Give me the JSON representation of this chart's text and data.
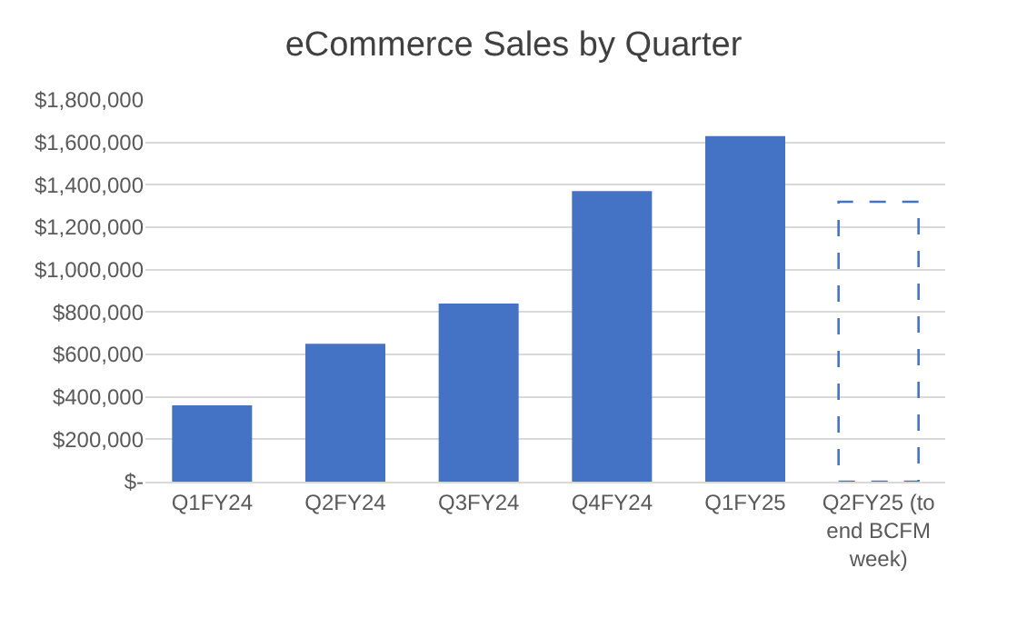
{
  "chart_data": {
    "type": "bar",
    "title": "eCommerce Sales by Quarter",
    "categories": [
      "Q1FY24",
      "Q2FY24",
      "Q3FY24",
      "Q4FY24",
      "Q1FY25",
      "Q2FY25 (to end BCFM week)"
    ],
    "series": [
      {
        "color": "#4472c4",
        "values": [
          360000,
          650000,
          840000,
          1370000,
          1630000,
          null
        ]
      },
      {
        "color": "#4472c4",
        "line_style": "dashed",
        "values": [
          null,
          null,
          null,
          null,
          null,
          1320000
        ]
      }
    ],
    "ylim": [
      0,
      1800000
    ],
    "yticks": [
      {
        "value": 0,
        "label": "$-"
      },
      {
        "value": 200000,
        "label": "$200,000"
      },
      {
        "value": 400000,
        "label": "$400,000"
      },
      {
        "value": 600000,
        "label": "$600,000"
      },
      {
        "value": 800000,
        "label": "$800,000"
      },
      {
        "value": 1000000,
        "label": "$1,000,000"
      },
      {
        "value": 1200000,
        "label": "$1,200,000"
      },
      {
        "value": 1400000,
        "label": "$1,400,000"
      },
      {
        "value": 1600000,
        "label": "$1,600,000"
      },
      {
        "value": 1800000,
        "label": "$1,800,000"
      }
    ],
    "grid": "y"
  }
}
